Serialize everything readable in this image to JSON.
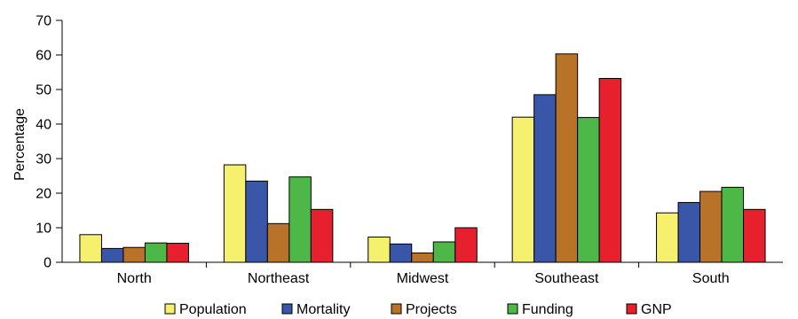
{
  "chart_data": {
    "type": "bar",
    "ylabel": "Percentage",
    "ylim": [
      0,
      70
    ],
    "yticks": [
      0,
      10,
      20,
      30,
      40,
      50,
      60,
      70
    ],
    "grid": false,
    "legend_position": "bottom",
    "categories": [
      "North",
      "Northeast",
      "Midwest",
      "Southeast",
      "South"
    ],
    "series": [
      {
        "name": "Population",
        "color": "#f5f06e",
        "values": [
          8,
          28.2,
          7.3,
          42,
          14.3
        ]
      },
      {
        "name": "Mortality",
        "color": "#3a56a8",
        "values": [
          4,
          23.5,
          5.3,
          48.5,
          17.3
        ]
      },
      {
        "name": "Projects",
        "color": "#b87328",
        "values": [
          4.3,
          11.2,
          2.7,
          60.3,
          20.5
        ]
      },
      {
        "name": "Funding",
        "color": "#4db847",
        "values": [
          5.6,
          24.7,
          5.9,
          41.9,
          21.7
        ]
      },
      {
        "name": "GNP",
        "color": "#e8202e",
        "values": [
          5.5,
          15.3,
          10,
          53.2,
          15.3
        ]
      }
    ]
  }
}
